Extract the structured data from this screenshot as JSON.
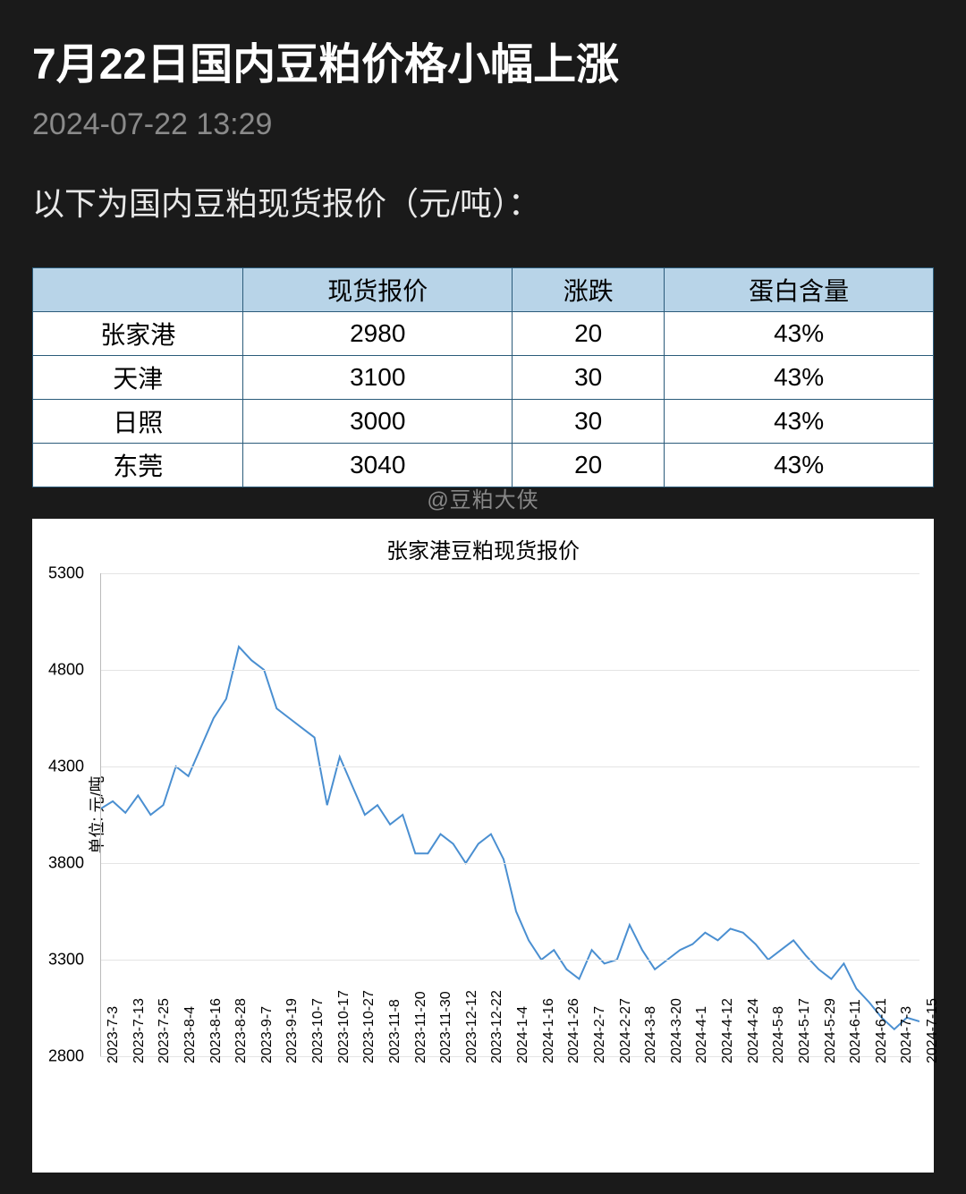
{
  "header": {
    "title": "7月22日国内豆粕价格小幅上涨",
    "timestamp": "2024-07-22 13:29",
    "intro": "以下为国内豆粕现货报价（元/吨）："
  },
  "watermark": "@豆粕大侠",
  "table": {
    "columns": [
      "",
      "现货报价",
      "涨跌",
      "蛋白含量"
    ],
    "rows": [
      [
        "张家港",
        "2980",
        "20",
        "43%"
      ],
      [
        "天津",
        "3100",
        "30",
        "43%"
      ],
      [
        "日照",
        "3000",
        "30",
        "43%"
      ],
      [
        "东莞",
        "3040",
        "20",
        "43%"
      ]
    ],
    "header_bg": "#b8d4e8",
    "border_color": "#2b5b7a",
    "cell_bg": "#ffffff",
    "font_size": 28
  },
  "chart": {
    "type": "line",
    "title": "张家港豆粕现货报价",
    "title_fontsize": 24,
    "ylabel": "单位: 元/吨",
    "label_fontsize": 18,
    "ylim": [
      2800,
      5300
    ],
    "ytick_step": 500,
    "yticks": [
      2800,
      3300,
      3800,
      4300,
      4800,
      5300
    ],
    "background_color": "#ffffff",
    "grid_color": "#e4e4e4",
    "line_color": "#4a8fd1",
    "line_width": 2,
    "x_labels": [
      "2023-7-3",
      "2023-7-13",
      "2023-7-25",
      "2023-8-4",
      "2023-8-16",
      "2023-8-28",
      "2023-9-7",
      "2023-9-19",
      "2023-10-7",
      "2023-10-17",
      "2023-10-27",
      "2023-11-8",
      "2023-11-20",
      "2023-11-30",
      "2023-12-12",
      "2023-12-22",
      "2024-1-4",
      "2024-1-16",
      "2024-1-26",
      "2024-2-7",
      "2024-2-27",
      "2024-3-8",
      "2024-3-20",
      "2024-4-1",
      "2024-4-12",
      "2024-4-24",
      "2024-5-8",
      "2024-5-17",
      "2024-5-29",
      "2024-6-11",
      "2024-6-21",
      "2024-7-3",
      "2024-7-15"
    ],
    "series": [
      4080,
      4120,
      4060,
      4150,
      4050,
      4100,
      4300,
      4250,
      4400,
      4550,
      4650,
      4920,
      4850,
      4800,
      4600,
      4550,
      4500,
      4450,
      4100,
      4350,
      4200,
      4050,
      4100,
      4000,
      4050,
      3850,
      3850,
      3950,
      3900,
      3800,
      3900,
      3950,
      3820,
      3550,
      3400,
      3300,
      3350,
      3250,
      3200,
      3350,
      3280,
      3300,
      3480,
      3350,
      3250,
      3300,
      3350,
      3380,
      3440,
      3400,
      3460,
      3440,
      3380,
      3300,
      3350,
      3400,
      3320,
      3250,
      3200,
      3280,
      3150,
      3080,
      3000,
      2940,
      3000,
      2980
    ]
  }
}
